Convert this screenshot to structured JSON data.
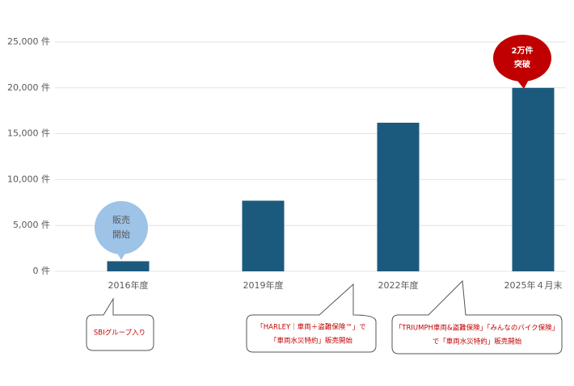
{
  "chart_data": {
    "type": "bar",
    "categories": [
      "2016年度",
      "2019年度",
      "2022年度",
      "2025年４月末"
    ],
    "values": [
      1100,
      7700,
      16200,
      20000
    ],
    "color": "#1c5a7d",
    "ylim": [
      0,
      25000
    ],
    "yticks": [
      {
        "value": 0,
        "label": "0 件"
      },
      {
        "value": 5000,
        "label": "5,000 件"
      },
      {
        "value": 10000,
        "label": "10,000 件"
      },
      {
        "value": 15000,
        "label": "15,000 件"
      },
      {
        "value": 20000,
        "label": "20,000 件"
      },
      {
        "value": 25000,
        "label": "25,000 件"
      }
    ],
    "grid": true,
    "annotations": [
      {
        "lines": [
          "販売",
          "開始"
        ]
      },
      {
        "lines": [
          "2万件",
          "突破"
        ]
      }
    ],
    "callouts": [
      {
        "lines": [
          "SBIグループ入り"
        ]
      },
      {
        "lines": [
          "「HARLEY｜車両＋盗難保険™」で",
          "「車両水災特約」販売開始"
        ]
      },
      {
        "lines": [
          "「TRIUMPH車両&盗難保険」「みんなのバイク保険」",
          "で「車両水災特約」販売開始"
        ]
      }
    ]
  }
}
